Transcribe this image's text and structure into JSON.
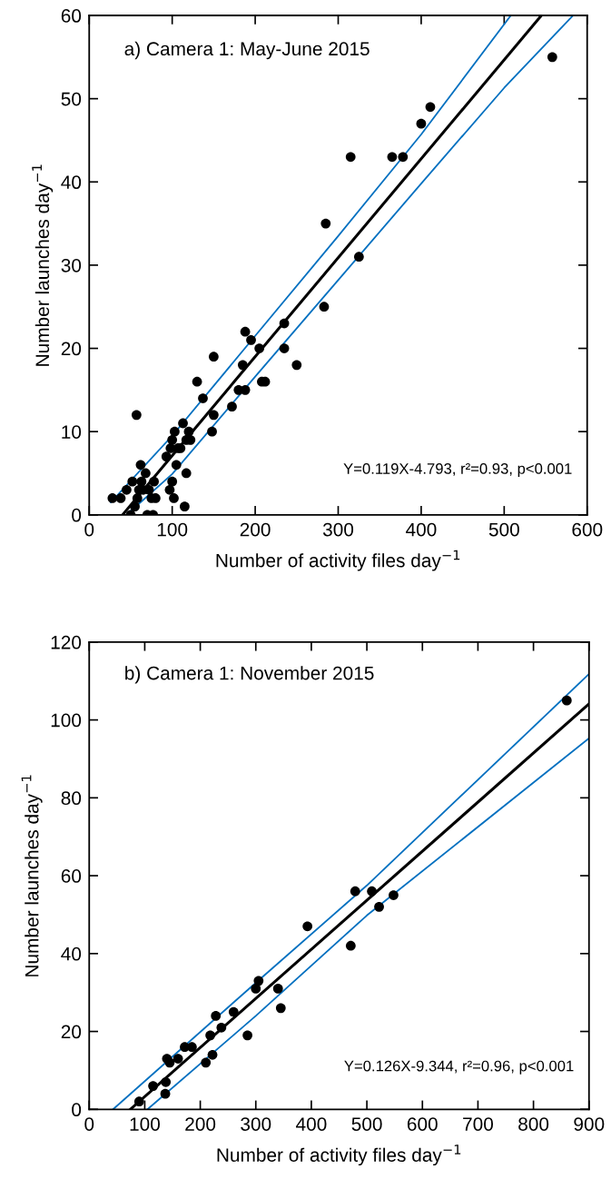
{
  "chart_data": [
    {
      "type": "scatter",
      "title": "a) Camera 1: May-June 2015",
      "xlabel": "Number of activity files day$^{−1}$",
      "ylabel": "Number launches day$^{−1}$",
      "annotations": [
        "Y=0.119X-4.793, r²=0.93, p<0.001"
      ],
      "xlim": [
        0,
        600
      ],
      "xticks": [
        0,
        100,
        200,
        300,
        400,
        500,
        600
      ],
      "ylim": [
        0,
        60
      ],
      "yticks": [
        0,
        10,
        20,
        30,
        40,
        50,
        60
      ],
      "grid": false,
      "legend": false,
      "series": [
        {
          "marker": "circle",
          "color": "#000000",
          "x": [
            28,
            38,
            45,
            50,
            52,
            55,
            57,
            58,
            60,
            62,
            63,
            65,
            68,
            70,
            72,
            75,
            77,
            78,
            80,
            93,
            97,
            98,
            100,
            100,
            102,
            103,
            105,
            107,
            110,
            113,
            115,
            117,
            117,
            120,
            122,
            130,
            137,
            148,
            150,
            150,
            172,
            180,
            185,
            188,
            188,
            195,
            205,
            208,
            212,
            235,
            235,
            250,
            283,
            285,
            315,
            325,
            365,
            378,
            400,
            411,
            558
          ],
          "values": [
            2,
            2,
            3,
            0,
            4,
            1,
            12,
            2,
            3,
            6,
            4,
            3,
            5,
            0,
            3,
            2,
            0,
            4,
            2,
            7,
            3,
            8,
            9,
            4,
            2,
            10,
            6,
            8,
            8,
            11,
            1,
            5,
            9,
            10,
            9,
            16,
            14,
            10,
            12,
            19,
            13,
            15,
            18,
            22,
            15,
            21,
            20,
            16,
            16,
            23,
            20,
            18,
            25,
            35,
            43,
            31,
            43,
            43,
            47,
            49,
            55
          ]
        },
        {
          "type": "line",
          "color": "#000000",
          "x": [
            41,
            544
          ],
          "values": [
            0.1,
            59.9
          ]
        },
        {
          "type": "line",
          "color": "#0070c0",
          "x": [
            26,
            100,
            200,
            300,
            400,
            508
          ],
          "values": [
            1.5,
            9.5,
            21.5,
            33.5,
            45.7,
            60
          ]
        },
        {
          "type": "line",
          "color": "#0070c0",
          "x": [
            45,
            100,
            200,
            300,
            400,
            500,
            583
          ],
          "values": [
            0,
            4.9,
            16.6,
            28.2,
            39.8,
            51.3,
            60
          ]
        }
      ]
    },
    {
      "type": "scatter",
      "title": "b) Camera 1: November 2015",
      "xlabel": "Number of activity files day$^{−1}$",
      "ylabel": "Number launches day$^{−1}$",
      "annotations": [
        "Y=0.126X-9.344, r²=0.96, p<0.001"
      ],
      "xlim": [
        0,
        900
      ],
      "xticks": [
        0,
        100,
        200,
        300,
        400,
        500,
        600,
        700,
        800,
        900
      ],
      "ylim": [
        0,
        120
      ],
      "yticks": [
        0,
        20,
        40,
        60,
        80,
        100,
        120
      ],
      "grid": false,
      "legend": false,
      "series": [
        {
          "marker": "circle",
          "color": "#000000",
          "x": [
            90,
            115,
            137,
            138,
            140,
            145,
            160,
            172,
            185,
            210,
            218,
            222,
            228,
            238,
            260,
            285,
            300,
            305,
            340,
            345,
            393,
            471,
            479,
            509,
            522,
            548,
            860
          ],
          "values": [
            2,
            6,
            4,
            7,
            13,
            12,
            13,
            16,
            16,
            12,
            19,
            14,
            24,
            21,
            25,
            19,
            31,
            33,
            31,
            26,
            47,
            42,
            56,
            56,
            52,
            55,
            105
          ]
        },
        {
          "type": "line",
          "color": "#000000",
          "x": [
            74,
            900
          ],
          "values": [
            0,
            104.1
          ]
        },
        {
          "type": "line",
          "color": "#0070c0",
          "x": [
            43,
            300,
            500,
            900
          ],
          "values": [
            0,
            32.5,
            57.5,
            111.8
          ]
        },
        {
          "type": "line",
          "color": "#0070c0",
          "x": [
            105,
            300,
            500,
            900
          ],
          "values": [
            0,
            24,
            49.8,
            95.3
          ]
        }
      ]
    }
  ]
}
